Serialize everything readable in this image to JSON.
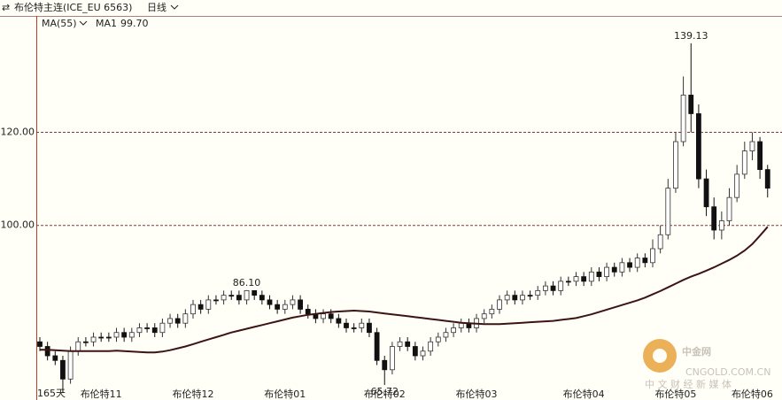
{
  "header": {
    "symbol": "布伦特主连(ICE_EU 6563)",
    "period": "日线",
    "indicator": "MA(55)"
  },
  "watermark": {
    "title": "中金网",
    "url": "CNGOLD.COM.CN",
    "slogan": "中 文 财 经 新 媒 体"
  },
  "chart_data": {
    "type": "candlestick",
    "ma_name": "MA1",
    "ma_last": {
      "value": 99.7,
      "label": "99.70"
    },
    "period_label": "165天",
    "categories": [
      null,
      null,
      null,
      null,
      null,
      null,
      null,
      null,
      "布伦特11",
      null,
      null,
      null,
      null,
      null,
      null,
      null,
      null,
      null,
      null,
      null,
      "布伦特12",
      null,
      null,
      null,
      null,
      null,
      null,
      null,
      null,
      null,
      null,
      null,
      "布伦特01",
      null,
      null,
      null,
      null,
      null,
      null,
      null,
      null,
      null,
      null,
      null,
      null,
      "布伦特02",
      null,
      null,
      null,
      null,
      null,
      null,
      null,
      null,
      null,
      null,
      null,
      "布伦特03",
      null,
      null,
      null,
      null,
      null,
      null,
      null,
      null,
      null,
      null,
      null,
      null,
      null,
      "布伦特04",
      null,
      null,
      null,
      null,
      null,
      null,
      null,
      null,
      null,
      null,
      null,
      "布伦特05",
      null,
      null,
      null,
      null,
      null,
      null,
      null,
      null,
      null,
      "布伦特06",
      null,
      null
    ],
    "open": [
      75,
      74,
      72,
      71,
      67,
      73,
      75,
      75,
      76,
      76,
      76,
      77,
      76,
      77,
      78,
      78,
      77,
      79,
      80,
      79,
      81,
      83,
      82,
      84,
      84,
      85,
      85,
      84,
      86,
      85,
      84,
      83,
      82,
      83,
      84,
      82,
      81,
      80,
      81,
      80,
      79,
      78,
      78,
      79,
      77,
      71,
      69,
      74,
      75,
      74,
      72,
      73,
      75,
      76,
      77,
      78,
      79,
      78,
      80,
      81,
      82,
      84,
      85,
      84,
      85,
      85,
      86,
      87,
      86,
      88,
      88,
      89,
      88,
      90,
      89,
      91,
      90,
      92,
      91,
      93,
      92,
      95,
      98,
      108,
      118,
      128,
      124,
      110,
      104,
      99,
      101,
      106,
      111,
      116,
      118,
      112
    ],
    "high": [
      76,
      75,
      73,
      72,
      74,
      76,
      76,
      77,
      77,
      77,
      78,
      78,
      78,
      79,
      79,
      79,
      80,
      81,
      81,
      82,
      84,
      84,
      85,
      85,
      86,
      86,
      86,
      86.1,
      86,
      86,
      85,
      84,
      84,
      85,
      85,
      83,
      82,
      82,
      82,
      81,
      80,
      79,
      80,
      80,
      78,
      72,
      75,
      76,
      76,
      75,
      74,
      76,
      77,
      78,
      79,
      80,
      80,
      81,
      82,
      83,
      85,
      86,
      86,
      86,
      86,
      87,
      88,
      88,
      89,
      89,
      90,
      90,
      91,
      91,
      92,
      92,
      93,
      93,
      94,
      94,
      97,
      100,
      110,
      120,
      132,
      139.13,
      126,
      112,
      106,
      103,
      108,
      113,
      118,
      120,
      119,
      113
    ],
    "low": [
      73,
      71,
      70,
      64,
      66,
      72,
      74,
      74,
      75,
      75,
      75,
      75,
      75,
      76,
      77,
      76,
      76,
      78,
      78,
      78,
      80,
      81,
      81,
      83,
      83,
      84,
      83,
      83,
      84,
      83,
      82,
      81,
      81,
      82,
      81,
      80,
      79,
      79,
      79,
      78,
      77,
      77,
      77,
      76,
      70,
      65.72,
      68,
      73,
      73,
      71,
      71,
      72,
      74,
      75,
      76,
      77,
      77,
      77,
      79,
      80,
      81,
      83,
      83,
      83,
      84,
      84,
      85,
      85,
      85,
      87,
      87,
      87,
      87,
      88,
      88,
      89,
      89,
      90,
      90,
      91,
      91,
      94,
      97,
      107,
      117,
      120,
      108,
      102,
      97,
      97,
      100,
      105,
      110,
      114,
      110,
      106
    ],
    "close": [
      74,
      72,
      71,
      67,
      73,
      75,
      75,
      76,
      76,
      76,
      77,
      76,
      77,
      78,
      78,
      77,
      79,
      80,
      79,
      81,
      83,
      82,
      84,
      84,
      85,
      85,
      84,
      86,
      85,
      84,
      83,
      82,
      83,
      84,
      82,
      81,
      80,
      81,
      80,
      79,
      78,
      78,
      79,
      77,
      71,
      69,
      74,
      75,
      74,
      72,
      73,
      75,
      76,
      77,
      78,
      79,
      78,
      80,
      81,
      82,
      84,
      85,
      84,
      85,
      85,
      86,
      87,
      86,
      88,
      88,
      89,
      88,
      90,
      89,
      91,
      90,
      92,
      91,
      93,
      92,
      95,
      98,
      108,
      118,
      128,
      124,
      110,
      104,
      99,
      101,
      106,
      111,
      116,
      118,
      112,
      108
    ],
    "ma": [
      73.3,
      73.3,
      73.2,
      73.1,
      73.0,
      73.0,
      73.0,
      73.0,
      73.0,
      73.0,
      73.1,
      73.0,
      72.9,
      72.8,
      72.7,
      72.7,
      72.9,
      73.2,
      73.6,
      74.0,
      74.5,
      75.0,
      75.5,
      76.0,
      76.5,
      77.0,
      77.4,
      77.8,
      78.2,
      78.6,
      79.0,
      79.4,
      79.8,
      80.2,
      80.5,
      80.8,
      81.0,
      81.2,
      81.4,
      81.5,
      81.6,
      81.7,
      81.6,
      81.5,
      81.3,
      81.1,
      80.9,
      80.7,
      80.5,
      80.3,
      80.1,
      79.9,
      79.7,
      79.5,
      79.3,
      79.1,
      79.0,
      78.9,
      78.8,
      78.8,
      78.8,
      78.9,
      79.0,
      79.1,
      79.2,
      79.3,
      79.4,
      79.5,
      79.7,
      79.9,
      80.1,
      80.5,
      80.9,
      81.4,
      81.9,
      82.4,
      82.9,
      83.4,
      83.9,
      84.5,
      85.2,
      85.9,
      86.7,
      87.5,
      88.3,
      89.0,
      89.6,
      90.3,
      91.0,
      91.8,
      92.6,
      93.5,
      94.6,
      96.0,
      97.8,
      99.7
    ],
    "ma_color": "#3d1414",
    "up_color": "#ffffff",
    "down_color": "#111111",
    "grid_color": "#7a3a3a",
    "extreme_labels": [
      {
        "index": 27,
        "label": "86.10"
      },
      {
        "index": 85,
        "label": "139.13"
      },
      {
        "index": 45,
        "label": "65.72"
      }
    ],
    "ylim": [
      62.5,
      145
    ],
    "yticks": [
      {
        "value": 120,
        "label": "120.00"
      },
      {
        "value": 100,
        "label": "100.00"
      }
    ],
    "grid": true
  }
}
